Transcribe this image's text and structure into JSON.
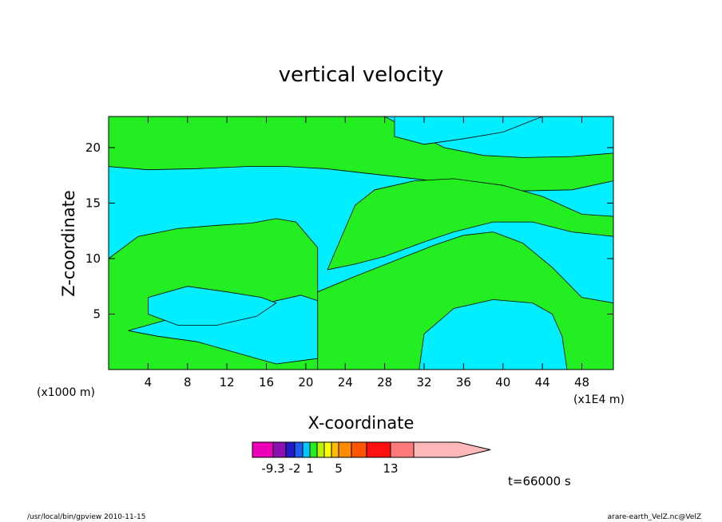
{
  "footer": {
    "left": "/usr/local/bin/gpview   2010-11-15",
    "right": "arare-earth_VelZ.nc@VelZ"
  },
  "colors": {
    "positive_region": "#22ee22",
    "negative_region": "#00eeff",
    "contour_line": "#000000"
  },
  "chart_data": {
    "type": "heatmap",
    "title": "vertical velocity",
    "xlabel": "X-coordinate",
    "ylabel": "Z-coordinate",
    "x_units_left": "(x1000 m)",
    "x_units_right": "(x1E4 m)",
    "time_label": "t=66000 s",
    "xlim": [
      0,
      51.2
    ],
    "ylim": [
      0,
      22.8
    ],
    "x_ticks": [
      4,
      8,
      12,
      16,
      20,
      24,
      28,
      32,
      36,
      40,
      44,
      48
    ],
    "y_ticks": [
      5,
      10,
      15,
      20
    ],
    "regions": [
      {
        "sign": "positive",
        "color": "#22ee22",
        "points": [
          [
            0,
            22.8
          ],
          [
            28,
            22.8
          ],
          [
            31,
            21.4
          ],
          [
            34,
            20
          ],
          [
            38,
            19.3
          ],
          [
            42,
            19.1
          ],
          [
            47,
            19.2
          ],
          [
            51.2,
            19.5
          ],
          [
            51.2,
            17
          ],
          [
            47,
            16.2
          ],
          [
            42,
            16.1
          ],
          [
            37,
            16.5
          ],
          [
            32,
            17.1
          ],
          [
            27,
            17.6
          ],
          [
            22,
            18.1
          ],
          [
            18,
            18.3
          ],
          [
            14,
            18.3
          ],
          [
            9,
            18.1
          ],
          [
            4,
            18
          ],
          [
            0,
            18.3
          ]
        ]
      },
      {
        "sign": "positive",
        "color": "#22ee22",
        "points": [
          [
            25,
            14.8
          ],
          [
            27,
            16.2
          ],
          [
            31,
            17
          ],
          [
            35,
            17.2
          ],
          [
            40,
            16.6
          ],
          [
            44,
            15.6
          ],
          [
            48,
            14
          ],
          [
            51.2,
            13.8
          ],
          [
            51.2,
            12
          ],
          [
            47,
            12.4
          ],
          [
            43,
            13.3
          ],
          [
            39,
            13.3
          ],
          [
            35,
            12.4
          ],
          [
            32,
            11.5
          ],
          [
            28,
            10.2
          ],
          [
            25,
            9.5
          ],
          [
            22.2,
            9
          ]
        ]
      },
      {
        "sign": "positive",
        "color": "#22ee22",
        "points": [
          [
            0,
            10
          ],
          [
            3,
            12
          ],
          [
            7,
            12.7
          ],
          [
            11,
            13
          ],
          [
            14.5,
            13.2
          ],
          [
            17,
            13.6
          ],
          [
            19,
            13.3
          ],
          [
            21.2,
            11
          ],
          [
            21.2,
            0
          ],
          [
            0,
            0
          ]
        ]
      },
      {
        "sign": "positive",
        "color": "#22ee22",
        "points": [
          [
            21.2,
            0
          ],
          [
            21.2,
            7
          ],
          [
            25,
            8.4
          ],
          [
            29,
            9.8
          ],
          [
            33,
            11.2
          ],
          [
            36,
            12.1
          ],
          [
            39,
            12.4
          ],
          [
            42,
            11.4
          ],
          [
            45,
            9.2
          ],
          [
            48,
            6.5
          ],
          [
            51.2,
            6
          ],
          [
            51.2,
            0
          ]
        ]
      },
      {
        "sign": "negative",
        "color": "#00eeff",
        "points": [
          [
            2,
            3.5
          ],
          [
            6,
            4.5
          ],
          [
            10,
            5
          ],
          [
            14,
            5.5
          ],
          [
            17,
            6.2
          ],
          [
            19.5,
            6.7
          ],
          [
            21.2,
            6.2
          ],
          [
            21.2,
            1
          ],
          [
            17,
            0.5
          ],
          [
            13,
            1.5
          ],
          [
            9,
            2.5
          ],
          [
            5,
            3
          ]
        ]
      },
      {
        "sign": "negative",
        "color": "#00eeff",
        "points": [
          [
            4,
            6.5
          ],
          [
            8,
            7.5
          ],
          [
            12,
            7
          ],
          [
            15.5,
            6.5
          ],
          [
            17,
            6
          ],
          [
            15,
            4.8
          ],
          [
            11,
            4
          ],
          [
            7,
            4
          ],
          [
            4,
            5
          ]
        ]
      },
      {
        "sign": "negative",
        "color": "#00eeff",
        "points": [
          [
            31.5,
            0
          ],
          [
            32,
            3.2
          ],
          [
            35,
            5.5
          ],
          [
            39,
            6.3
          ],
          [
            43,
            6
          ],
          [
            45,
            5
          ],
          [
            46,
            3
          ],
          [
            46.5,
            0
          ]
        ]
      },
      {
        "sign": "negative",
        "color": "#00eeff",
        "points": [
          [
            29,
            22.8
          ],
          [
            29,
            21
          ],
          [
            32,
            20.3
          ],
          [
            36,
            20.8
          ],
          [
            40,
            21.4
          ],
          [
            44,
            22.8
          ]
        ]
      }
    ],
    "colorbar": {
      "tick_labels": [
        "-9.3",
        "-2",
        "1",
        "5",
        "13"
      ],
      "colors": [
        "#ee00bb",
        "#8a10b0",
        "#2418c8",
        "#1e5cf2",
        "#00c8ff",
        "#22ee22",
        "#bbf000",
        "#ffff00",
        "#ffbb00",
        "#ff8c00",
        "#ff5500",
        "#ff1010",
        "#ff7b7b",
        "#ffb8b8"
      ],
      "widths": [
        26,
        16,
        11,
        10,
        9,
        9,
        9,
        9,
        9,
        16,
        19,
        30,
        29,
        56
      ]
    }
  }
}
